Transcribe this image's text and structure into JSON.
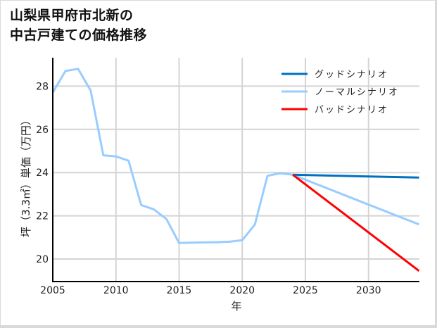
{
  "title": {
    "line1": "山梨県甲府市北新の",
    "line2": "中古戸建ての価格推移"
  },
  "colors": {
    "good": "#0070c0",
    "normal": "#99ccff",
    "bad": "#ff0000",
    "grid": "#d4d4d4",
    "axis": "#000000"
  },
  "chart_data": {
    "type": "line",
    "title": "山梨県甲府市北新の中古戸建ての価格推移",
    "xlabel": "年",
    "ylabel": "坪（3.3㎡）単価（万円）",
    "xlim": [
      2005,
      2034
    ],
    "ylim": [
      19,
      29.5
    ],
    "xticks": [
      2005,
      2010,
      2015,
      2020,
      2025,
      2030
    ],
    "yticks": [
      20,
      22,
      24,
      26,
      28
    ],
    "grid": true,
    "legend_position": "upper right",
    "series": [
      {
        "name": "ノーマルシナリオ",
        "role": "historical",
        "color": "#99ccff",
        "x": [
          2005,
          2006,
          2007,
          2008,
          2009,
          2010,
          2011,
          2012,
          2013,
          2014,
          2015,
          2016,
          2017,
          2018,
          2019,
          2020,
          2021,
          2022,
          2023,
          2024
        ],
        "values": [
          27.7,
          28.7,
          28.8,
          27.8,
          24.8,
          24.75,
          24.55,
          22.5,
          22.3,
          21.85,
          20.74,
          20.76,
          20.77,
          20.78,
          20.8,
          20.87,
          21.6,
          23.85,
          23.97,
          23.9
        ]
      },
      {
        "name": "グッドシナリオ",
        "color": "#0070c0",
        "x": [
          2024,
          2034
        ],
        "values": [
          23.9,
          23.77
        ]
      },
      {
        "name": "ノーマルシナリオ",
        "color": "#99ccff",
        "x": [
          2024,
          2034
        ],
        "values": [
          23.9,
          21.6
        ]
      },
      {
        "name": "バッドシナリオ",
        "color": "#ff0000",
        "x": [
          2024,
          2034
        ],
        "values": [
          23.9,
          19.45
        ]
      }
    ]
  },
  "legend": [
    {
      "label": "グッドシナリオ",
      "color": "#0070c0"
    },
    {
      "label": "ノーマルシナリオ",
      "color": "#99ccff"
    },
    {
      "label": "バッドシナリオ",
      "color": "#ff0000"
    }
  ],
  "axes": {
    "xlabel": "年",
    "ylabel": "坪（3.3㎡）単価（万円）",
    "xticks": [
      "2005",
      "2010",
      "2015",
      "2020",
      "2025",
      "2030"
    ],
    "yticks": [
      "20",
      "22",
      "24",
      "26",
      "28"
    ]
  }
}
